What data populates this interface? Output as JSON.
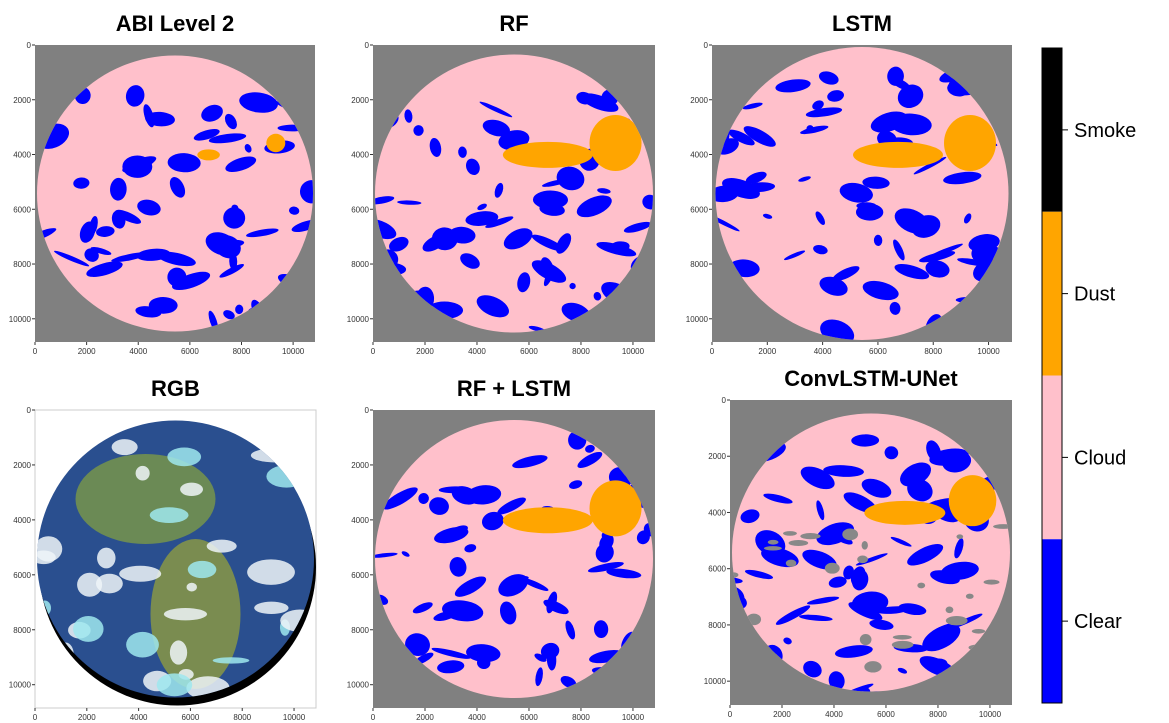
{
  "panels": [
    {
      "title": "ABI Level 2",
      "xticks": [
        0,
        2000,
        4000,
        6000,
        8000,
        10000
      ],
      "yticks": [
        0,
        2000,
        4000,
        6000,
        8000,
        10000
      ]
    },
    {
      "title": "RF",
      "xticks": [
        0,
        2000,
        4000,
        6000,
        8000,
        10000
      ],
      "yticks": [
        0,
        2000,
        4000,
        6000,
        8000,
        10000
      ]
    },
    {
      "title": "LSTM",
      "xticks": [
        0,
        2000,
        4000,
        6000,
        8000,
        10000
      ],
      "yticks": [
        0,
        2000,
        4000,
        6000,
        8000,
        10000
      ]
    },
    {
      "title": "RGB",
      "xticks": [
        0,
        2000,
        4000,
        6000,
        8000,
        10000
      ],
      "yticks": [
        0,
        2000,
        4000,
        6000,
        8000,
        10000
      ]
    },
    {
      "title": "RF + LSTM",
      "xticks": [
        0,
        2000,
        4000,
        6000,
        8000,
        10000
      ],
      "yticks": [
        0,
        2000,
        4000,
        6000,
        8000,
        10000
      ]
    },
    {
      "title": "ConvLSTM-UNet",
      "xticks": [
        0,
        2000,
        4000,
        6000,
        8000,
        10000
      ],
      "yticks": [
        0,
        2000,
        4000,
        6000,
        8000,
        10000
      ]
    }
  ],
  "colorbar": {
    "classes": [
      {
        "label": "Smoke",
        "color": "#000000"
      },
      {
        "label": "Dust",
        "color": "#ffa500"
      },
      {
        "label": "Cloud",
        "color": "#ffc0cb"
      },
      {
        "label": "Clear",
        "color": "#0000ff"
      }
    ]
  }
}
